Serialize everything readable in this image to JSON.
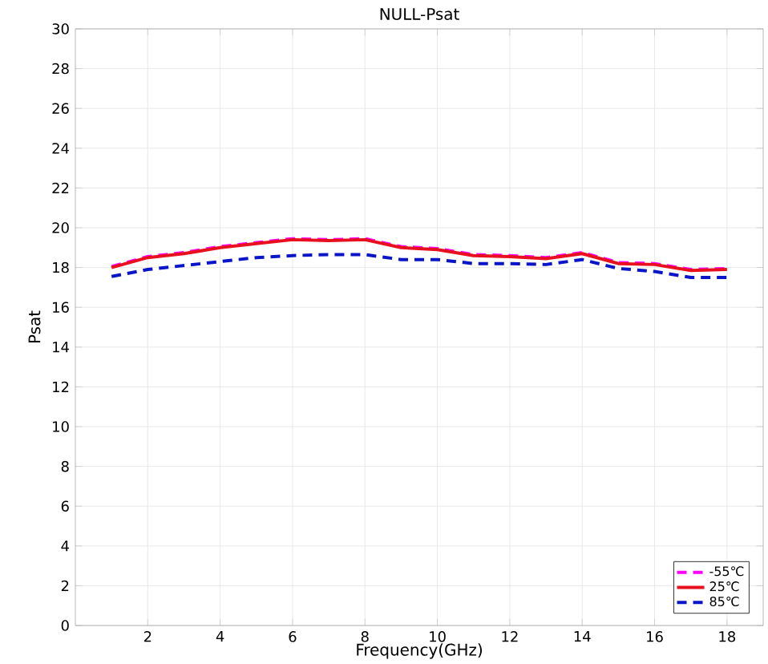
{
  "chart_data": {
    "type": "line",
    "title": "NULL-Psat",
    "xlabel": "Frequency(GHz)",
    "ylabel": "Psat",
    "x": [
      1,
      2,
      3,
      4,
      5,
      6,
      7,
      8,
      9,
      10,
      11,
      12,
      13,
      14,
      15,
      16,
      17,
      18
    ],
    "xlim": [
      0,
      19
    ],
    "xticks": [
      2,
      4,
      6,
      8,
      10,
      12,
      14,
      16,
      18
    ],
    "ylim": [
      0,
      30
    ],
    "yticks": [
      0,
      2,
      4,
      6,
      8,
      10,
      12,
      14,
      16,
      18,
      20,
      22,
      24,
      26,
      28,
      30
    ],
    "grid": true,
    "legend": "bottom right",
    "series": [
      {
        "name": "-55℃",
        "color": "#ff00ff",
        "line_style": "dashed",
        "values": [
          18.05,
          18.55,
          18.75,
          19.05,
          19.25,
          19.45,
          19.4,
          19.45,
          19.05,
          18.95,
          18.65,
          18.6,
          18.5,
          18.75,
          18.25,
          18.2,
          17.9,
          17.95
        ]
      },
      {
        "name": "25℃",
        "color": "#e8101e",
        "line_style": "solid",
        "values": [
          18.0,
          18.5,
          18.7,
          19.0,
          19.2,
          19.4,
          19.35,
          19.4,
          19.0,
          18.9,
          18.6,
          18.55,
          18.45,
          18.7,
          18.2,
          18.15,
          17.85,
          17.9
        ]
      },
      {
        "name": "85℃",
        "color": "#0a14c8",
        "line_style": "dashed",
        "values": [
          17.55,
          17.9,
          18.1,
          18.3,
          18.5,
          18.6,
          18.65,
          18.65,
          18.4,
          18.4,
          18.2,
          18.2,
          18.15,
          18.4,
          17.95,
          17.8,
          17.5,
          17.5
        ]
      }
    ]
  }
}
